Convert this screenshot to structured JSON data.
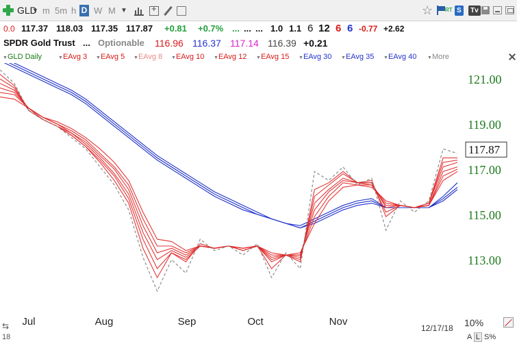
{
  "toolbar": {
    "symbol": "GLD",
    "intervals": [
      {
        "label": "m",
        "active": false
      },
      {
        "label": "5m",
        "active": false
      },
      {
        "label": "h",
        "active": false
      },
      {
        "label": "D",
        "active": true
      },
      {
        "label": "W",
        "active": false
      },
      {
        "label": "M",
        "active": false
      }
    ],
    "rt_label": "RT",
    "s_label": "S",
    "tv_label": "Tv"
  },
  "quote": {
    "change_prev": "0.0",
    "open": "117.37",
    "high": "118.03",
    "low": "117.35",
    "close": "117.87",
    "change": "+0.81",
    "change_pct": "+0.7%",
    "dots1": "...",
    "dots2": "...",
    "dots3": "...",
    "v1": "1.0",
    "v2": "1.1",
    "n1": "6",
    "n2": "12",
    "n3": "6",
    "n4": "6",
    "v3": "-0.77",
    "v4": "+2.62"
  },
  "instrument": {
    "name": "SPDR Gold Trust",
    "dots": "...",
    "optionable": "Optionable",
    "p1": "116.96",
    "p2": "116.37",
    "p3": "117.14",
    "p4": "116.39",
    "p5": "+0.21"
  },
  "studies": [
    {
      "label": "GLD Daily",
      "color": "#1a7a1a"
    },
    {
      "label": "EAvg 3",
      "color": "#d81a1a"
    },
    {
      "label": "EAvg 5",
      "color": "#d81a1a"
    },
    {
      "label": "EAvg 8",
      "color": "#e88a8a"
    },
    {
      "label": "EAvg 10",
      "color": "#d81a1a"
    },
    {
      "label": "EAvg 12",
      "color": "#d81a1a"
    },
    {
      "label": "EAvg 15",
      "color": "#d81a1a"
    },
    {
      "label": "EAvg 30",
      "color": "#2233cc"
    },
    {
      "label": "EAvg 35",
      "color": "#2233cc"
    },
    {
      "label": "EAvg 40",
      "color": "#2233cc"
    },
    {
      "label": "More",
      "color": "#888888"
    }
  ],
  "colors": {
    "fast_ema": "#e02020",
    "slow_ema": "#1c2fc8",
    "price": "#8c8c8c",
    "axis_text": "#1f7a1f"
  },
  "chart_data": {
    "type": "line",
    "x_labels": [
      "Jul",
      "Aug",
      "Sep",
      "Oct",
      "Nov"
    ],
    "y_ticks": [
      121.0,
      119.0,
      117.0,
      115.0,
      113.0
    ],
    "ylim": [
      110.9,
      121.7
    ],
    "last_price": "117.87",
    "date_label": "12/17/18",
    "scale_label": "10%",
    "scale_buttons": [
      "A",
      "L",
      "S%"
    ],
    "price_series": {
      "name": "GLD Daily",
      "x": [
        0,
        5,
        10,
        15,
        20,
        25,
        30,
        35,
        40,
        45,
        50,
        55,
        60,
        65,
        70,
        75,
        80,
        85,
        90,
        95,
        100,
        105,
        110,
        115,
        120,
        125,
        130,
        135,
        140,
        145,
        150,
        155,
        160
      ],
      "values": [
        121.4,
        120.8,
        119.6,
        119.2,
        118.9,
        118.4,
        117.9,
        117.1,
        116.3,
        115.2,
        113.1,
        111.6,
        113.0,
        112.4,
        113.9,
        113.4,
        113.6,
        113.2,
        113.7,
        112.2,
        113.3,
        112.6,
        116.9,
        116.5,
        117.1,
        116.3,
        116.6,
        114.3,
        115.6,
        115.1,
        115.6,
        117.9,
        117.7
      ]
    },
    "ema_fast": [
      {
        "name": "EAvg 3",
        "values": [
          121.2,
          120.7,
          119.6,
          119.2,
          118.9,
          118.5,
          118.0,
          117.3,
          116.5,
          115.5,
          113.5,
          112.2,
          113.3,
          112.9,
          113.7,
          113.5,
          113.6,
          113.4,
          113.6,
          112.6,
          113.2,
          112.9,
          116.1,
          116.4,
          116.9,
          116.4,
          116.5,
          114.9,
          115.4,
          115.3,
          115.5,
          117.5,
          117.5
        ]
      },
      {
        "name": "EAvg 5",
        "values": [
          121.0,
          120.6,
          119.6,
          119.2,
          118.9,
          118.5,
          118.0,
          117.4,
          116.7,
          115.7,
          113.9,
          112.6,
          113.3,
          113.0,
          113.6,
          113.5,
          113.6,
          113.4,
          113.6,
          112.9,
          113.2,
          113.0,
          115.8,
          116.3,
          116.8,
          116.4,
          116.4,
          115.1,
          115.4,
          115.3,
          115.5,
          117.3,
          117.4
        ]
      },
      {
        "name": "EAvg 8",
        "values": [
          120.8,
          120.5,
          119.7,
          119.2,
          118.9,
          118.6,
          118.1,
          117.5,
          116.8,
          115.9,
          114.2,
          113.0,
          113.4,
          113.1,
          113.6,
          113.5,
          113.6,
          113.4,
          113.6,
          113.0,
          113.2,
          113.1,
          115.5,
          116.1,
          116.6,
          116.4,
          116.4,
          115.3,
          115.4,
          115.3,
          115.5,
          117.1,
          117.3
        ]
      },
      {
        "name": "EAvg 10",
        "values": [
          120.6,
          120.4,
          119.7,
          119.3,
          119.0,
          118.6,
          118.2,
          117.6,
          117.0,
          116.1,
          114.5,
          113.3,
          113.5,
          113.2,
          113.6,
          113.5,
          113.6,
          113.5,
          113.6,
          113.1,
          113.2,
          113.2,
          115.2,
          116.0,
          116.5,
          116.4,
          116.3,
          115.4,
          115.4,
          115.3,
          115.4,
          116.9,
          117.1
        ]
      },
      {
        "name": "EAvg 12",
        "values": [
          120.4,
          120.3,
          119.7,
          119.3,
          119.0,
          118.7,
          118.3,
          117.7,
          117.1,
          116.3,
          114.8,
          113.6,
          113.6,
          113.3,
          113.6,
          113.5,
          113.6,
          113.5,
          113.6,
          113.2,
          113.2,
          113.2,
          114.9,
          115.8,
          116.4,
          116.3,
          116.3,
          115.5,
          115.4,
          115.3,
          115.4,
          116.7,
          117.0
        ]
      },
      {
        "name": "EAvg 15",
        "values": [
          120.2,
          120.1,
          119.7,
          119.3,
          119.1,
          118.8,
          118.4,
          117.9,
          117.3,
          116.5,
          115.1,
          113.9,
          113.8,
          113.4,
          113.6,
          113.5,
          113.6,
          113.5,
          113.6,
          113.3,
          113.2,
          113.3,
          114.6,
          115.6,
          116.2,
          116.3,
          116.2,
          115.6,
          115.4,
          115.3,
          115.4,
          116.5,
          116.9
        ]
      }
    ],
    "ema_slow": [
      {
        "name": "EAvg 30",
        "values": [
          121.8,
          121.5,
          121.2,
          120.9,
          120.6,
          120.3,
          119.9,
          119.4,
          118.9,
          118.4,
          117.9,
          117.4,
          117.0,
          116.6,
          116.2,
          115.8,
          115.5,
          115.2,
          115.0,
          114.8,
          114.6,
          114.5,
          114.8,
          115.1,
          115.4,
          115.6,
          115.7,
          115.3,
          115.3,
          115.3,
          115.3,
          115.8,
          116.4
        ]
      },
      {
        "name": "EAvg 35",
        "values": [
          121.9,
          121.6,
          121.3,
          121.0,
          120.7,
          120.4,
          120.0,
          119.5,
          119.0,
          118.5,
          118.0,
          117.5,
          117.1,
          116.7,
          116.3,
          115.9,
          115.6,
          115.3,
          115.0,
          114.8,
          114.6,
          114.4,
          114.7,
          115.0,
          115.3,
          115.5,
          115.6,
          115.3,
          115.3,
          115.3,
          115.3,
          115.7,
          116.2
        ]
      },
      {
        "name": "EAvg 40",
        "values": [
          122.0,
          121.7,
          121.4,
          121.1,
          120.8,
          120.5,
          120.1,
          119.6,
          119.1,
          118.6,
          118.1,
          117.6,
          117.2,
          116.8,
          116.4,
          116.0,
          115.7,
          115.4,
          115.1,
          114.8,
          114.6,
          114.4,
          114.6,
          114.9,
          115.2,
          115.4,
          115.5,
          115.3,
          115.3,
          115.3,
          115.3,
          115.6,
          116.1
        ]
      }
    ]
  }
}
